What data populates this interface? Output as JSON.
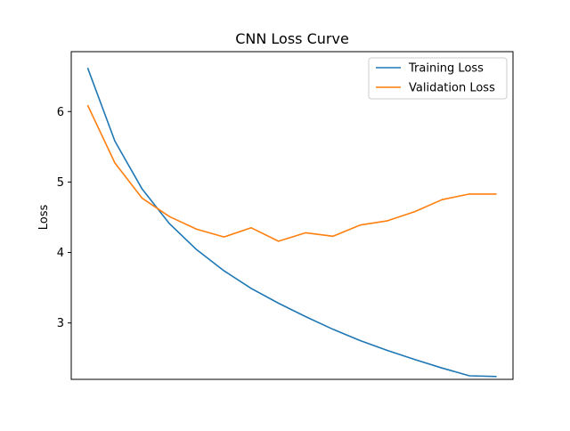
{
  "chart_data": {
    "type": "line",
    "title": "CNN Loss Curve",
    "xlabel": "",
    "ylabel": "Loss",
    "x": [
      1,
      2,
      3,
      4,
      5,
      6,
      7,
      8,
      9,
      10,
      11,
      12,
      13,
      14,
      15,
      16
    ],
    "xlim": [
      0.4,
      16.6
    ],
    "ylim": [
      2.2,
      6.85
    ],
    "yticks": [
      3,
      4,
      5,
      6
    ],
    "xticks_visible": false,
    "grid": false,
    "legend_position": "upper right",
    "series": [
      {
        "name": "Training Loss",
        "color": "#1f77b4",
        "values": [
          6.62,
          5.58,
          4.9,
          4.41,
          4.04,
          3.74,
          3.49,
          3.28,
          3.09,
          2.91,
          2.75,
          2.61,
          2.48,
          2.36,
          2.25,
          2.24
        ]
      },
      {
        "name": "Validation Loss",
        "color": "#ff7f0e",
        "values": [
          6.09,
          5.27,
          4.77,
          4.51,
          4.33,
          4.22,
          4.35,
          4.16,
          4.28,
          4.23,
          4.39,
          4.45,
          4.58,
          4.75,
          4.83,
          4.83
        ]
      }
    ]
  }
}
